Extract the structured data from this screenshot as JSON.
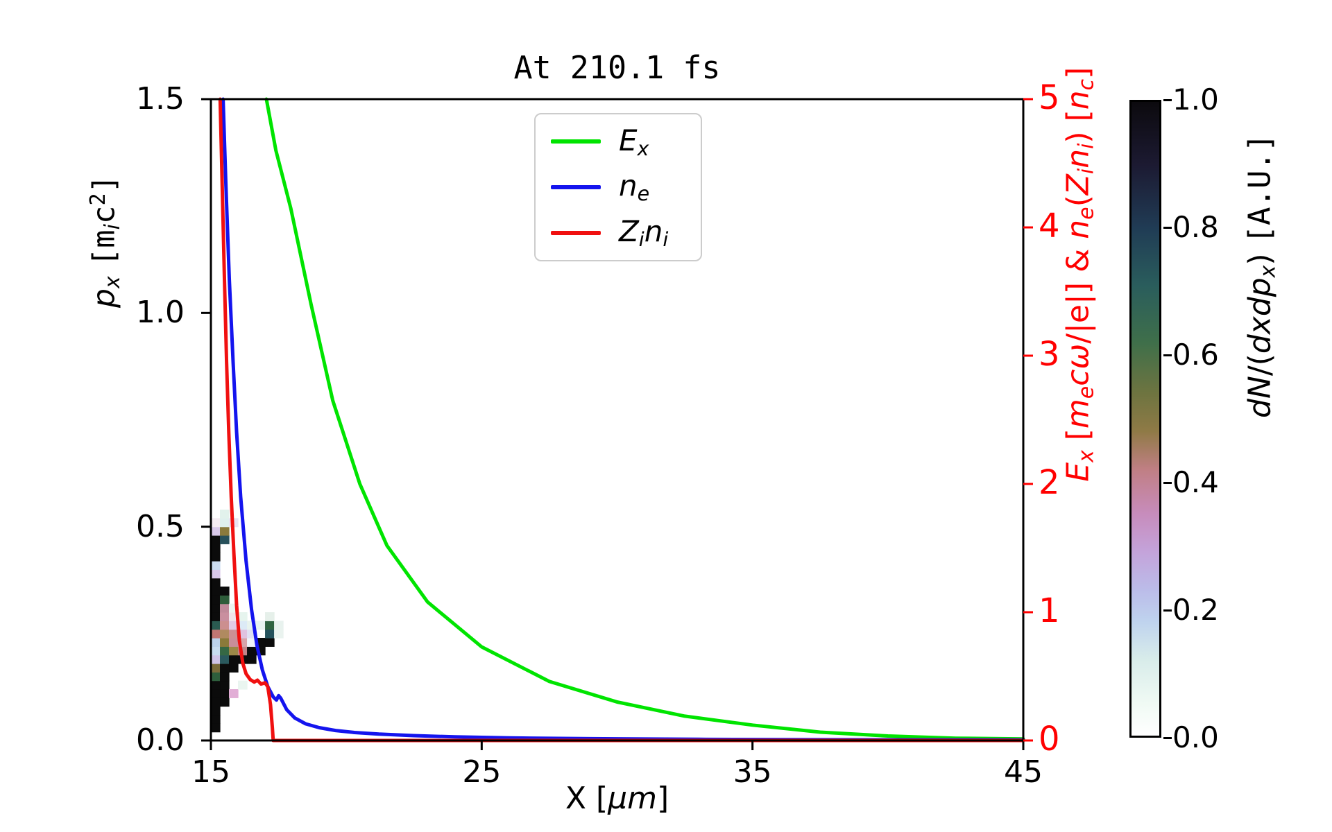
{
  "chart_data": {
    "type": "composite",
    "title": "At 210.1 fs",
    "x_axis": {
      "label": "X [μm]",
      "range": [
        15,
        45
      ],
      "ticks": [
        {
          "v": 15,
          "label": "15"
        },
        {
          "v": 25,
          "label": "25"
        },
        {
          "v": 35,
          "label": "35"
        },
        {
          "v": 45,
          "label": "45"
        }
      ]
    },
    "y_left": {
      "label": "p_x [m_i c^2]",
      "range": [
        0,
        1.5
      ],
      "ticks": [
        {
          "v": 0,
          "label": "0.0"
        },
        {
          "v": 0.5,
          "label": "0.5"
        },
        {
          "v": 1.0,
          "label": "1.0"
        },
        {
          "v": 1.5,
          "label": "1.5"
        }
      ]
    },
    "y_right": {
      "label": "E_x [m_e cω/|e|] & n_e(Z_i n_i) [n_c]",
      "range": [
        0,
        5
      ],
      "color": "#ff0000",
      "ticks": [
        {
          "v": 0,
          "label": "0"
        },
        {
          "v": 1,
          "label": "1"
        },
        {
          "v": 2,
          "label": "2"
        },
        {
          "v": 3,
          "label": "3"
        },
        {
          "v": 4,
          "label": "4"
        },
        {
          "v": 5,
          "label": "5"
        }
      ]
    },
    "series": [
      {
        "name": "E_x",
        "color": "#00e400",
        "axis": "right",
        "width": 5,
        "points": [
          [
            17.05,
            5.0
          ],
          [
            17.4,
            4.6
          ],
          [
            17.95,
            4.15
          ],
          [
            18.7,
            3.4
          ],
          [
            19.5,
            2.65
          ],
          [
            20.5,
            2.0
          ],
          [
            21.5,
            1.52
          ],
          [
            23.0,
            1.08
          ],
          [
            25.0,
            0.73
          ],
          [
            27.5,
            0.46
          ],
          [
            30.0,
            0.3
          ],
          [
            32.5,
            0.19
          ],
          [
            35.0,
            0.12
          ],
          [
            37.5,
            0.065
          ],
          [
            40.0,
            0.035
          ],
          [
            42.5,
            0.018
          ],
          [
            45.0,
            0.012
          ]
        ]
      },
      {
        "name": "n_e",
        "color": "#1414ee",
        "axis": "right",
        "width": 5,
        "points": [
          [
            15.45,
            5.0
          ],
          [
            15.55,
            4.35
          ],
          [
            15.68,
            3.6
          ],
          [
            15.82,
            2.95
          ],
          [
            15.95,
            2.4
          ],
          [
            16.1,
            1.9
          ],
          [
            16.3,
            1.4
          ],
          [
            16.5,
            1.02
          ],
          [
            16.7,
            0.74
          ],
          [
            16.9,
            0.55
          ],
          [
            17.1,
            0.42
          ],
          [
            17.3,
            0.34
          ],
          [
            17.42,
            0.315
          ],
          [
            17.5,
            0.35
          ],
          [
            17.58,
            0.33
          ],
          [
            17.8,
            0.24
          ],
          [
            18.1,
            0.175
          ],
          [
            18.5,
            0.13
          ],
          [
            19.0,
            0.1
          ],
          [
            19.6,
            0.078
          ],
          [
            20.3,
            0.062
          ],
          [
            21.2,
            0.05
          ],
          [
            22.5,
            0.038
          ],
          [
            24.0,
            0.028
          ],
          [
            26.0,
            0.02
          ],
          [
            29.0,
            0.014
          ],
          [
            33.0,
            0.009
          ],
          [
            38.0,
            0.006
          ],
          [
            45.0,
            0.005
          ]
        ]
      },
      {
        "name": "Z_i n_i",
        "color": "#f01010",
        "axis": "right",
        "width": 5,
        "points": [
          [
            15.34,
            5.0
          ],
          [
            15.42,
            4.3
          ],
          [
            15.5,
            3.6
          ],
          [
            15.58,
            2.95
          ],
          [
            15.66,
            2.4
          ],
          [
            15.75,
            1.9
          ],
          [
            15.85,
            1.45
          ],
          [
            15.95,
            1.05
          ],
          [
            16.05,
            0.78
          ],
          [
            16.18,
            0.6
          ],
          [
            16.3,
            0.52
          ],
          [
            16.45,
            0.475
          ],
          [
            16.6,
            0.455
          ],
          [
            16.72,
            0.47
          ],
          [
            16.85,
            0.44
          ],
          [
            17.0,
            0.45
          ],
          [
            17.1,
            0.42
          ],
          [
            17.2,
            0.28
          ],
          [
            17.27,
            0.1
          ],
          [
            17.3,
            0.0
          ],
          [
            45.0,
            0.0
          ]
        ]
      }
    ],
    "heatmap": {
      "description": "ion phase space dN/(dx dp_x), cell grid starting at x=15 μm, p_x=0",
      "x0": 15,
      "dx_um": 0.3333,
      "dp": 0.02,
      "cells": [
        [
          0,
          1,
          "#0b0b0b"
        ],
        [
          0,
          2,
          "#0b0b0b"
        ],
        [
          0,
          3,
          "#0b0b0b"
        ],
        [
          0,
          4,
          "#0b0b0b"
        ],
        [
          0,
          5,
          "#0b0b0b"
        ],
        [
          0,
          6,
          "#0b0b0b"
        ],
        [
          0,
          7,
          "#2e5e3c"
        ],
        [
          0,
          8,
          "#7a6a3a"
        ],
        [
          0,
          9,
          "#d0c4e8"
        ],
        [
          0,
          10,
          "#c8dcf0"
        ],
        [
          0,
          11,
          "#bcd2ec"
        ],
        [
          0,
          12,
          "#c07673"
        ],
        [
          0,
          13,
          "#2a5a50"
        ],
        [
          0,
          14,
          "#0b0b0b"
        ],
        [
          0,
          15,
          "#0b0b0b"
        ],
        [
          0,
          16,
          "#0b0b0b"
        ],
        [
          0,
          17,
          "#0b0b0b"
        ],
        [
          0,
          18,
          "#0b0b0b"
        ],
        [
          0,
          19,
          "#d8c8ea"
        ],
        [
          0,
          20,
          "#ccdcf0"
        ],
        [
          0,
          21,
          "#0b0b0b"
        ],
        [
          0,
          22,
          "#0b0b0b"
        ],
        [
          0,
          23,
          "#0b0b0b"
        ],
        [
          0,
          24,
          "#d9c9e9"
        ],
        [
          0,
          25,
          "#f5ecf2"
        ],
        [
          1,
          4,
          "#0b0b0b"
        ],
        [
          1,
          5,
          "#0b0b0b"
        ],
        [
          1,
          6,
          "#0b0b0b"
        ],
        [
          1,
          7,
          "#0b0b0b"
        ],
        [
          1,
          8,
          "#0b0b0b"
        ],
        [
          1,
          9,
          "#2b5a5e"
        ],
        [
          1,
          10,
          "#356844"
        ],
        [
          1,
          11,
          "#8a7a3a"
        ],
        [
          1,
          12,
          "#b08a60"
        ],
        [
          1,
          13,
          "#cc8f8f"
        ],
        [
          1,
          14,
          "#c98f9f"
        ],
        [
          1,
          15,
          "#c08a9a"
        ],
        [
          1,
          16,
          "#2e5d3a"
        ],
        [
          1,
          17,
          "#0b0b0b"
        ],
        [
          1,
          23,
          "#27505a"
        ],
        [
          1,
          24,
          "#8a7a3c"
        ],
        [
          1,
          25,
          "#dff0ee"
        ],
        [
          1,
          26,
          "#e2f2ec"
        ],
        [
          2,
          5,
          "#e2aed6"
        ],
        [
          2,
          8,
          "#0b0b0b"
        ],
        [
          2,
          9,
          "#0b0b0b"
        ],
        [
          2,
          10,
          "#9c8848"
        ],
        [
          2,
          11,
          "#c98e9a"
        ],
        [
          2,
          12,
          "#cc9095"
        ],
        [
          2,
          13,
          "#e2cae6"
        ],
        [
          2,
          14,
          "#f0e2ea"
        ],
        [
          2,
          15,
          "#ecf4f0"
        ],
        [
          2,
          25,
          "#e9e2f2"
        ],
        [
          3,
          6,
          "#eaf5f0"
        ],
        [
          3,
          9,
          "#0b0b0b"
        ],
        [
          3,
          10,
          "#c28589"
        ],
        [
          3,
          11,
          "#d8a4aa"
        ],
        [
          3,
          12,
          "#e0c2e0"
        ],
        [
          3,
          13,
          "#dceaf6"
        ],
        [
          3,
          14,
          "#e6f4ee"
        ],
        [
          4,
          9,
          "#0b0b0b"
        ],
        [
          4,
          10,
          "#0b0b0b"
        ],
        [
          4,
          11,
          "#f0f2f8"
        ],
        [
          4,
          12,
          "#e0e0f2"
        ],
        [
          4,
          13,
          "#e8f3ee"
        ],
        [
          5,
          10,
          "#0b0b0b"
        ],
        [
          5,
          11,
          "#0b0b0b"
        ],
        [
          5,
          13,
          "#e8f4f0"
        ],
        [
          6,
          11,
          "#0b0b0b"
        ],
        [
          6,
          12,
          "#24525c"
        ],
        [
          6,
          13,
          "#2e6340"
        ],
        [
          6,
          14,
          "#e6f0ea"
        ],
        [
          7,
          12,
          "#eaf3ef"
        ],
        [
          7,
          13,
          "#e8f2ee"
        ]
      ]
    },
    "colorbar": {
      "label": "dN/(dxdp_x) [A.U.]",
      "range": [
        0,
        1
      ],
      "colormap": "cubehelix_r",
      "ticks": [
        {
          "v": 1.0,
          "label": "1.0"
        },
        {
          "v": 0.8,
          "label": "0.8"
        },
        {
          "v": 0.6,
          "label": "0.6"
        },
        {
          "v": 0.4,
          "label": "0.4"
        },
        {
          "v": 0.2,
          "label": "0.2"
        },
        {
          "v": 0.0,
          "label": "0.0"
        }
      ],
      "gradient_stops": [
        [
          0.0,
          "#ffffff"
        ],
        [
          0.05,
          "#f0faf4"
        ],
        [
          0.12,
          "#d8ecea"
        ],
        [
          0.18,
          "#bfd3ee"
        ],
        [
          0.23,
          "#bbbce9"
        ],
        [
          0.29,
          "#c4a3da"
        ],
        [
          0.35,
          "#c78cbc"
        ],
        [
          0.42,
          "#c07f84"
        ],
        [
          0.48,
          "#8f7a46"
        ],
        [
          0.54,
          "#6e7440"
        ],
        [
          0.62,
          "#3f6f4a"
        ],
        [
          0.71,
          "#2a5d5c"
        ],
        [
          0.8,
          "#203c55"
        ],
        [
          0.9,
          "#1c1a32"
        ],
        [
          1.0,
          "#0c0a0e"
        ]
      ]
    },
    "legend_position": "upper center-left inside axes"
  },
  "labels": {
    "y_left": [
      {
        "t": "p",
        "s": "i"
      },
      {
        "t": "x",
        "s": "i sub"
      },
      {
        "t": " ",
        "s": ""
      },
      {
        "t": "[m",
        "s": "mono"
      },
      {
        "t": "i",
        "s": "i sub"
      },
      {
        "t": "c",
        "s": "mono"
      },
      {
        "t": "2",
        "s": "mono sup"
      },
      {
        "t": "]",
        "s": "mono"
      }
    ],
    "y_right": [
      {
        "t": "E",
        "s": "i"
      },
      {
        "t": "x",
        "s": "i sub"
      },
      {
        "t": " [",
        "s": ""
      },
      {
        "t": "m",
        "s": "i"
      },
      {
        "t": "e",
        "s": "i sub"
      },
      {
        "t": "c",
        "s": "i"
      },
      {
        "t": "ω",
        "s": "i"
      },
      {
        "t": "/|e|]  &  ",
        "s": ""
      },
      {
        "t": "n",
        "s": "i"
      },
      {
        "t": "e",
        "s": "i sub"
      },
      {
        "t": "(",
        "s": ""
      },
      {
        "t": "Z",
        "s": "i"
      },
      {
        "t": "i",
        "s": "i sub"
      },
      {
        "t": "n",
        "s": "i"
      },
      {
        "t": "i",
        "s": "i sub"
      },
      {
        "t": ") [",
        "s": ""
      },
      {
        "t": "n",
        "s": "i"
      },
      {
        "t": "c",
        "s": "i sub"
      },
      {
        "t": "]",
        "s": ""
      }
    ],
    "x": [
      {
        "t": "X [",
        "s": ""
      },
      {
        "t": "μm",
        "s": "i"
      },
      {
        "t": "]",
        "s": ""
      }
    ],
    "colorbar": [
      {
        "t": "dN",
        "s": "i"
      },
      {
        "t": "/(",
        "s": ""
      },
      {
        "t": "dxdp",
        "s": "i"
      },
      {
        "t": "x",
        "s": "i sub"
      },
      {
        "t": ") ",
        "s": ""
      },
      {
        "t": "[A.U.]",
        "s": "mono"
      }
    ]
  },
  "legend": {
    "entries": [
      {
        "color": "#00e400",
        "segments": [
          {
            "t": "E",
            "s": "i"
          },
          {
            "t": "x",
            "s": "i sub"
          }
        ]
      },
      {
        "color": "#1414ee",
        "segments": [
          {
            "t": "n",
            "s": "i"
          },
          {
            "t": "e",
            "s": "i sub"
          }
        ]
      },
      {
        "color": "#f01010",
        "segments": [
          {
            "t": "Z",
            "s": "i"
          },
          {
            "t": "i",
            "s": "i sub"
          },
          {
            "t": "n",
            "s": "i"
          },
          {
            "t": "i",
            "s": "i sub"
          }
        ]
      }
    ]
  }
}
